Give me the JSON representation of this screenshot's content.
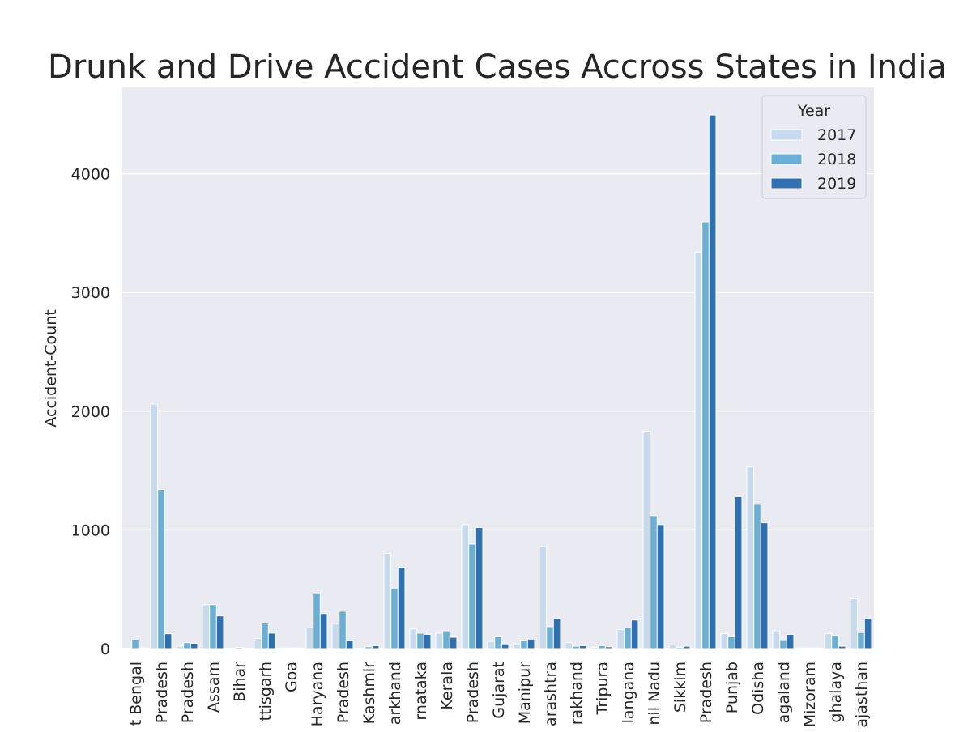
{
  "chart_data": {
    "type": "bar",
    "title": "Drunk and Drive Accident Cases Accross States in India",
    "xlabel": "",
    "ylabel": "Accident-Count",
    "ylim": [
      0,
      4650
    ],
    "yticks": [
      0,
      1000,
      2000,
      3000,
      4000
    ],
    "grid": true,
    "legend_title": "Year",
    "legend_position": "top-right",
    "colors": {
      "background": "#eaeaf2",
      "grid": "#ffffff",
      "2017": "#c6dbef",
      "2018": "#6baed6",
      "2019": "#2f70b0"
    },
    "categories": [
      "t Bengal",
      "Pradesh",
      "Pradesh",
      "Assam",
      "Bihar",
      "ttisgarh",
      "Goa",
      "Haryana",
      "Pradesh",
      "Kashmir",
      "arkhand",
      "rnataka",
      "Kerala",
      "Pradesh",
      "Gujarat",
      "Manipur",
      "arashtra",
      "rakhand",
      "Tripura",
      "langana",
      "nil Nadu",
      "Sikkim",
      "Pradesh",
      "Punjab",
      "Odisha",
      "agaland",
      "Mizoram",
      "ghalaya",
      "ajasthan"
    ],
    "series": [
      {
        "name": "2017",
        "values": [
          0,
          2060,
          20,
          370,
          0,
          85,
          5,
          175,
          210,
          0,
          800,
          165,
          130,
          1045,
          60,
          40,
          860,
          50,
          10,
          160,
          1830,
          30,
          3340,
          125,
          1530,
          150,
          5,
          125,
          420
        ]
      },
      {
        "name": "2018",
        "values": [
          80,
          1340,
          50,
          370,
          10,
          215,
          5,
          470,
          315,
          15,
          510,
          130,
          150,
          880,
          100,
          70,
          185,
          20,
          25,
          175,
          1120,
          10,
          3595,
          100,
          1215,
          75,
          5,
          110,
          135
        ]
      },
      {
        "name": "2019",
        "values": [
          5,
          125,
          45,
          275,
          0,
          130,
          5,
          295,
          70,
          25,
          685,
          120,
          95,
          1020,
          40,
          80,
          255,
          25,
          15,
          240,
          1045,
          20,
          4495,
          1280,
          1060,
          120,
          5,
          20,
          255
        ]
      }
    ]
  }
}
